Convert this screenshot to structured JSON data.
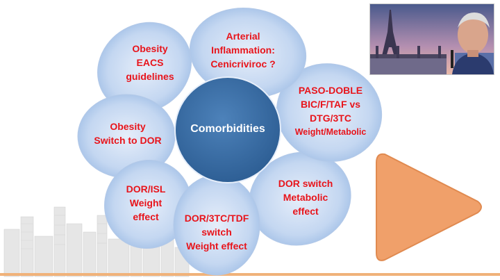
{
  "diagram": {
    "center_label": "Comorbidities",
    "petals": [
      {
        "lines": [
          "Arterial",
          "Inflammation:",
          "Cenicriviroc ?"
        ]
      },
      {
        "lines": [
          "PASO-DOBLE",
          "BIC/F/TAF vs",
          "DTG/3TC"
        ],
        "extra": "Weight/Metabolic"
      },
      {
        "lines": [
          "DOR switch",
          "Metabolic",
          "effect"
        ]
      },
      {
        "lines": [
          "DOR/3TC/TDF",
          "switch",
          "Weight effect"
        ]
      },
      {
        "lines": [
          "DOR/ISL",
          "Weight",
          "effect"
        ]
      },
      {
        "lines": [
          "Obesity",
          "Switch to DOR"
        ]
      },
      {
        "lines": [
          "Obesity",
          "EACS",
          "guidelines"
        ]
      }
    ]
  },
  "colors": {
    "petal_fill_light": "#dbe8f7",
    "petal_fill_dark": "#8fb2e0",
    "hub_fill": "#3a6ea5",
    "label_red": "#e8141b",
    "play_orange": "#f0a06a",
    "skyline_grey": "#e3e3e3"
  },
  "icons": {
    "play_button": "play-triangle-icon",
    "presenter_video": "presenter-webcam"
  }
}
